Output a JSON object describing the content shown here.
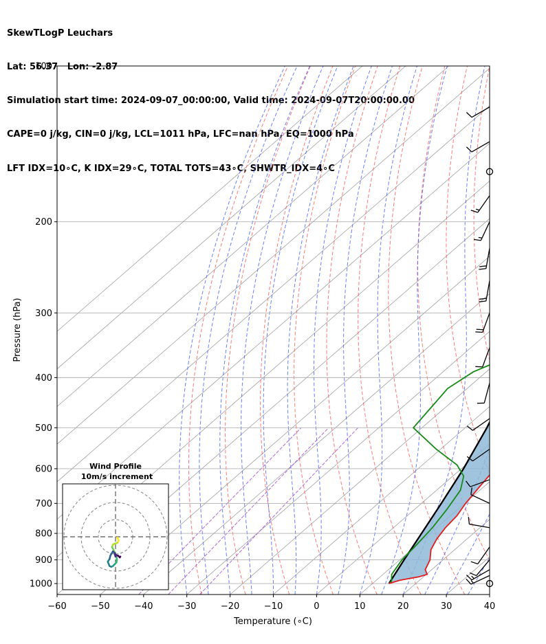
{
  "header": {
    "line1": "SkewTLogP Leuchars",
    "line2": "Lat: 56.37   Lon: -2.87",
    "line3": "Simulation start time: 2024-09-07_00:00:00, Valid time: 2024-09-07T20:00:00.00",
    "line4": "CAPE=0 j/kg, CIN=0 j/kg, LCL=1011 hPa, LFC=nan hPa, EQ=1000 hPa",
    "line5": "LFT IDX=10∘C, K IDX=29∘C, TOTAL TOTS=43∘C, SHWTR_IDX=4∘C"
  },
  "colors": {
    "temperature": "#e31a1c",
    "dewpoint": "#168a16",
    "parcel": "#000000",
    "cape_fill": "#8fb8d8",
    "dry_adiabat": "#ff4b4b",
    "moist_adiabat": "#3c50ff",
    "mixing_ratio": "#a050d0",
    "isotherm": "#a0a0a0",
    "grid": "#b0b0b0"
  },
  "chart_data": {
    "type": "line",
    "title": "",
    "xlabel": "Temperature (∘C)",
    "ylabel": "Pressure (hPa)",
    "xlim": [
      -60,
      40
    ],
    "ylim": [
      1050,
      100
    ],
    "y_scale": "log",
    "x_ticks": [
      -60,
      -50,
      -40,
      -30,
      -20,
      -10,
      0,
      10,
      20,
      30,
      40
    ],
    "y_ticks": [
      1000,
      900,
      800,
      700,
      600,
      500,
      400,
      300,
      200,
      100
    ],
    "grid": true,
    "series": [
      {
        "role": "temperature",
        "points": [
          [
            1000,
            13.8
          ],
          [
            985,
            15.5
          ],
          [
            970,
            19.0
          ],
          [
            960,
            20.2
          ],
          [
            940,
            18.5
          ],
          [
            900,
            17.0
          ],
          [
            860,
            14.5
          ],
          [
            820,
            13.0
          ],
          [
            780,
            12.0
          ],
          [
            740,
            11.5
          ],
          [
            700,
            10.2
          ],
          [
            650,
            9.0
          ],
          [
            600,
            7.8
          ],
          [
            550,
            6.8
          ],
          [
            500,
            4.8
          ],
          [
            450,
            2.0
          ],
          [
            400,
            -1.5
          ],
          [
            350,
            -5.5
          ],
          [
            310,
            -7.5
          ],
          [
            280,
            -10.0
          ],
          [
            250,
            -13.5
          ],
          [
            230,
            -15.0
          ],
          [
            210,
            -15.5
          ],
          [
            190,
            -17.0
          ],
          [
            175,
            -18.0
          ],
          [
            165,
            -16.0
          ],
          [
            150,
            -15.5
          ],
          [
            130,
            -16.5
          ],
          [
            115,
            -19.5
          ],
          [
            100,
            -23.0
          ]
        ]
      },
      {
        "role": "dewpoint",
        "points": [
          [
            1000,
            13.8
          ],
          [
            990,
            13.8
          ],
          [
            960,
            12.0
          ],
          [
            900,
            10.5
          ],
          [
            850,
            10.0
          ],
          [
            780,
            9.0
          ],
          [
            720,
            7.5
          ],
          [
            660,
            5.5
          ],
          [
            620,
            2.5
          ],
          [
            590,
            -2.0
          ],
          [
            550,
            -11.0
          ],
          [
            500,
            -22.0
          ],
          [
            450,
            -23.5
          ],
          [
            420,
            -24.5
          ],
          [
            390,
            -23.0
          ],
          [
            360,
            -18.0
          ],
          [
            335,
            -16.0
          ],
          [
            310,
            -19.5
          ],
          [
            280,
            -21.0
          ],
          [
            250,
            -22.0
          ],
          [
            235,
            -23.0
          ],
          [
            200,
            -24.5
          ],
          [
            180,
            -26.0
          ],
          [
            165,
            -29.0
          ],
          [
            150,
            -34.5
          ],
          [
            140,
            -34.5
          ],
          [
            130,
            -34.0
          ],
          [
            115,
            -33.5
          ],
          [
            100,
            -33.0
          ]
        ]
      },
      {
        "role": "parcel",
        "points": [
          [
            1000,
            13.8
          ],
          [
            900,
            11.0
          ],
          [
            800,
            8.0
          ],
          [
            700,
            4.6
          ],
          [
            600,
            0.5
          ],
          [
            500,
            -5.0
          ],
          [
            400,
            -12.5
          ],
          [
            300,
            -22.5
          ],
          [
            250,
            -29.0
          ],
          [
            200,
            -37.5
          ],
          [
            150,
            -48.5
          ],
          [
            120,
            -56.5
          ],
          [
            100,
            -62.5
          ]
        ]
      }
    ],
    "wind_barbs": [
      {
        "pressure": 1000,
        "calm": true
      },
      {
        "pressure": 965,
        "speed_kt": 15,
        "direction_deg": 245
      },
      {
        "pressure": 940,
        "speed_kt": 15,
        "direction_deg": 240
      },
      {
        "pressure": 900,
        "speed_kt": 10,
        "direction_deg": 220
      },
      {
        "pressure": 850,
        "speed_kt": 10,
        "direction_deg": 215
      },
      {
        "pressure": 780,
        "speed_kt": 10,
        "direction_deg": 280
      },
      {
        "pressure": 700,
        "speed_kt": 10,
        "direction_deg": 295
      },
      {
        "pressure": 630,
        "speed_kt": 10,
        "direction_deg": 250
      },
      {
        "pressure": 550,
        "speed_kt": 10,
        "direction_deg": 235
      },
      {
        "pressure": 480,
        "speed_kt": 10,
        "direction_deg": 235
      },
      {
        "pressure": 410,
        "speed_kt": 10,
        "direction_deg": 195
      },
      {
        "pressure": 350,
        "speed_kt": 10,
        "direction_deg": 200
      },
      {
        "pressure": 300,
        "speed_kt": 20,
        "direction_deg": 200
      },
      {
        "pressure": 260,
        "speed_kt": 20,
        "direction_deg": 190
      },
      {
        "pressure": 225,
        "speed_kt": 20,
        "direction_deg": 190
      },
      {
        "pressure": 200,
        "speed_kt": 15,
        "direction_deg": 205
      },
      {
        "pressure": 178,
        "speed_kt": 15,
        "direction_deg": 215
      },
      {
        "pressure": 160,
        "calm": true
      },
      {
        "pressure": 140,
        "speed_kt": 10,
        "direction_deg": 240
      },
      {
        "pressure": 120,
        "speed_kt": 10,
        "direction_deg": 240
      }
    ],
    "inset": {
      "title_line1": "Wind Profile",
      "title_line2": "10m/s increment",
      "hodograph": [
        [
          1.0,
          0.5
        ],
        [
          1.5,
          1.2
        ],
        [
          1.8,
          2.2
        ],
        [
          1.2,
          3.5
        ],
        [
          -0.5,
          4.0
        ],
        [
          -1.5,
          4.5
        ],
        [
          -2.0,
          6.0
        ],
        [
          -1.2,
          7.5
        ],
        [
          -0.5,
          9.0
        ],
        [
          0.5,
          11.0
        ],
        [
          0.8,
          13.5
        ],
        [
          0.5,
          15.0
        ],
        [
          -0.5,
          16.0
        ],
        [
          -1.5,
          17.0
        ],
        [
          -2.5,
          17.5
        ],
        [
          -3.5,
          17.0
        ],
        [
          -4.5,
          14.5
        ],
        [
          -3.5,
          13.0
        ],
        [
          -3.0,
          11.0
        ],
        [
          -2.5,
          10.0
        ],
        [
          -1.5,
          8.5
        ],
        [
          -0.5,
          9.5
        ],
        [
          0.2,
          10.5
        ],
        [
          0.0,
          11.5
        ],
        [
          -0.5,
          10.0
        ],
        [
          0.0,
          10.5
        ],
        [
          1.5,
          11.0
        ],
        [
          2.5,
          12.0
        ],
        [
          2.8,
          11.5
        ]
      ]
    }
  }
}
